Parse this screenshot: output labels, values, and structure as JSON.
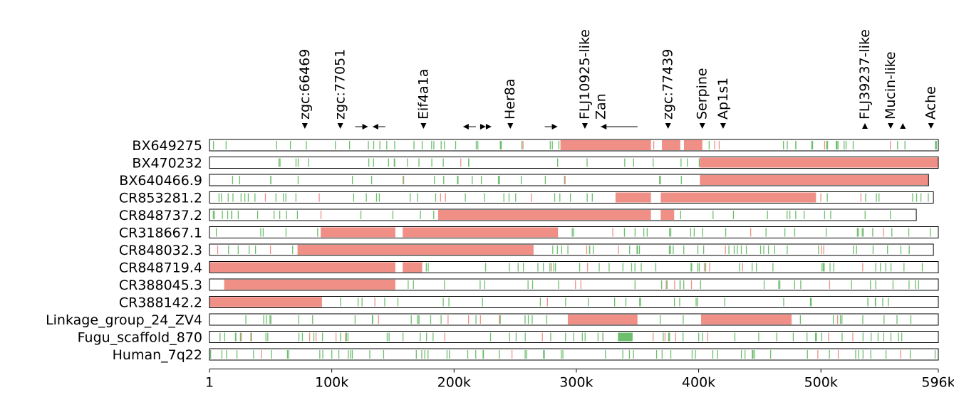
{
  "colors": {
    "aligned_block": "#f08f86",
    "gene_feature": "#6dbe6d",
    "track_border": "#000000"
  },
  "axis": {
    "tick_labels": [
      "1",
      "100k",
      "200k",
      "300k",
      "400k",
      "500k",
      "596k"
    ]
  },
  "genes": [
    {
      "label": "zgc:66469",
      "pos": 78000,
      "dir": "down"
    },
    {
      "label": "zgc:77051",
      "pos": 107000,
      "dir": "down"
    },
    {
      "label": "",
      "pos": 125000,
      "dir": "right"
    },
    {
      "label": "",
      "pos": 138000,
      "dir": "left"
    },
    {
      "label": "Eif4a1a",
      "pos": 175000,
      "dir": "down"
    },
    {
      "label": "",
      "pos": 212000,
      "dir": "left"
    },
    {
      "label": "",
      "pos": 226000,
      "dir": "right2"
    },
    {
      "label": "Her8a",
      "pos": 246000,
      "dir": "down"
    },
    {
      "label": "",
      "pos": 280000,
      "dir": "right"
    },
    {
      "label": "FLJ10925-like",
      "pos": 307000,
      "dir": "down"
    },
    {
      "label": "Zan",
      "pos": 320000,
      "dir": "span",
      "end": 350000
    },
    {
      "label": "zgc:77439",
      "pos": 375000,
      "dir": "down"
    },
    {
      "label": "Serpine",
      "pos": 403000,
      "dir": "down"
    },
    {
      "label": "Ap1s1",
      "pos": 420000,
      "dir": "down"
    },
    {
      "label": "FLJ39237-like",
      "pos": 536000,
      "dir": "up"
    },
    {
      "label": "Mucin-like",
      "pos": 557000,
      "dir": "down"
    },
    {
      "label": "",
      "pos": 567000,
      "dir": "up"
    },
    {
      "label": "Ache",
      "pos": 590000,
      "dir": "down"
    }
  ],
  "tracks": [
    {
      "name": "BX649275",
      "end": 596000,
      "blocks": [
        [
          287000,
          361000
        ],
        [
          370000,
          385000
        ],
        [
          388000,
          403000
        ]
      ]
    },
    {
      "name": "BX470232",
      "end": 596000,
      "blocks": [
        [
          401000,
          596000
        ]
      ]
    },
    {
      "name": "BX640466.9",
      "end": 588000,
      "blocks": [
        [
          401000,
          588000
        ]
      ]
    },
    {
      "name": "CR853281.2",
      "end": 592000,
      "blocks": [
        [
          332000,
          361000
        ],
        [
          369000,
          496000
        ]
      ]
    },
    {
      "name": "CR848737.2",
      "end": 578000,
      "blocks": [
        [
          187000,
          361000
        ],
        [
          369000,
          380000
        ]
      ]
    },
    {
      "name": "CR318667.1",
      "end": 596000,
      "blocks": [
        [
          91000,
          152000
        ],
        [
          158000,
          285000
        ]
      ]
    },
    {
      "name": "CR848032.3",
      "end": 592000,
      "blocks": [
        [
          72000,
          265000
        ]
      ]
    },
    {
      "name": "CR848719.4",
      "end": 596000,
      "blocks": [
        [
          0,
          152000
        ],
        [
          158000,
          174000
        ]
      ]
    },
    {
      "name": "CR388045.3",
      "end": 596000,
      "blocks": [
        [
          12000,
          152000
        ]
      ]
    },
    {
      "name": "CR388142.2",
      "end": 596000,
      "blocks": [
        [
          0,
          92000
        ]
      ]
    },
    {
      "name": "Linkage_group_24_ZV4",
      "end": 596000,
      "blocks": [
        [
          293000,
          350000
        ],
        [
          402000,
          476000
        ]
      ]
    },
    {
      "name": "Fugu_scaffold_870",
      "end": 596000,
      "blocks": []
    },
    {
      "name": "Human_7q22",
      "end": 596000,
      "blocks": []
    }
  ]
}
